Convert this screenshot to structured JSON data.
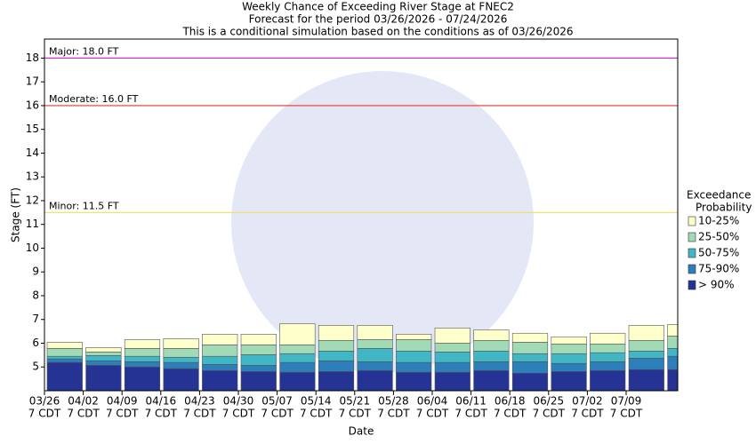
{
  "chart_data": {
    "type": "bar",
    "title": [
      "Weekly Chance of Exceeding River Stage at FNEC2",
      "Forecast for the period 03/26/2026 - 07/24/2026",
      "This is a conditional simulation based on the conditions as of 03/26/2026"
    ],
    "xlabel": "Date",
    "ylabel": "Stage (FT)",
    "categories": [
      "03/26",
      "04/02",
      "04/09",
      "04/16",
      "04/23",
      "04/30",
      "05/07",
      "05/14",
      "05/21",
      "05/28",
      "06/04",
      "06/11",
      "06/18",
      "06/25",
      "07/02",
      "07/09",
      null
    ],
    "tick_sublabel": "7 CDT",
    "ylim": [
      4,
      18.8
    ],
    "yticks": [
      5,
      6,
      7,
      8,
      9,
      10,
      11,
      12,
      13,
      14,
      15,
      16,
      17,
      18
    ],
    "legend_title": [
      "Exceedance",
      "Probability"
    ],
    "series": [
      {
        "name": "> 90%",
        "color": "#253494",
        "values": [
          5.19,
          5.07,
          5.0,
          4.93,
          4.85,
          4.81,
          4.78,
          4.81,
          4.85,
          4.78,
          4.78,
          4.85,
          4.74,
          4.81,
          4.85,
          4.89,
          4.89
        ]
      },
      {
        "name": "75-90%",
        "color": "#2c7fb8",
        "values": [
          5.34,
          5.26,
          5.22,
          5.19,
          5.11,
          5.07,
          5.19,
          5.26,
          5.22,
          5.19,
          5.19,
          5.22,
          5.22,
          5.15,
          5.22,
          5.37,
          5.45
        ]
      },
      {
        "name": "50-75%",
        "color": "#41b6c4",
        "values": [
          5.45,
          5.48,
          5.45,
          5.41,
          5.45,
          5.52,
          5.56,
          5.67,
          5.78,
          5.67,
          5.63,
          5.67,
          5.56,
          5.56,
          5.6,
          5.67,
          5.78
        ]
      },
      {
        "name": "25-50%",
        "color": "#a1dab4",
        "values": [
          5.78,
          5.63,
          5.78,
          5.78,
          5.93,
          5.93,
          5.93,
          6.12,
          6.15,
          6.15,
          6.0,
          6.12,
          6.04,
          5.97,
          5.97,
          6.12,
          6.3
        ]
      },
      {
        "name": "10-25%",
        "color": "#ffffcc",
        "values": [
          6.04,
          5.82,
          6.15,
          6.19,
          6.38,
          6.38,
          6.82,
          6.75,
          6.75,
          6.38,
          6.64,
          6.56,
          6.42,
          6.27,
          6.42,
          6.75,
          6.79
        ]
      }
    ],
    "thresholds": [
      {
        "label": "Major: 18.0 FT",
        "value": 18.0,
        "color": "#cc33cc"
      },
      {
        "label": "Moderate: 16.0 FT",
        "value": 16.0,
        "color": "#ee3333"
      },
      {
        "label": "Minor: 11.5 FT",
        "value": 11.5,
        "color": "#eedd66"
      }
    ]
  }
}
